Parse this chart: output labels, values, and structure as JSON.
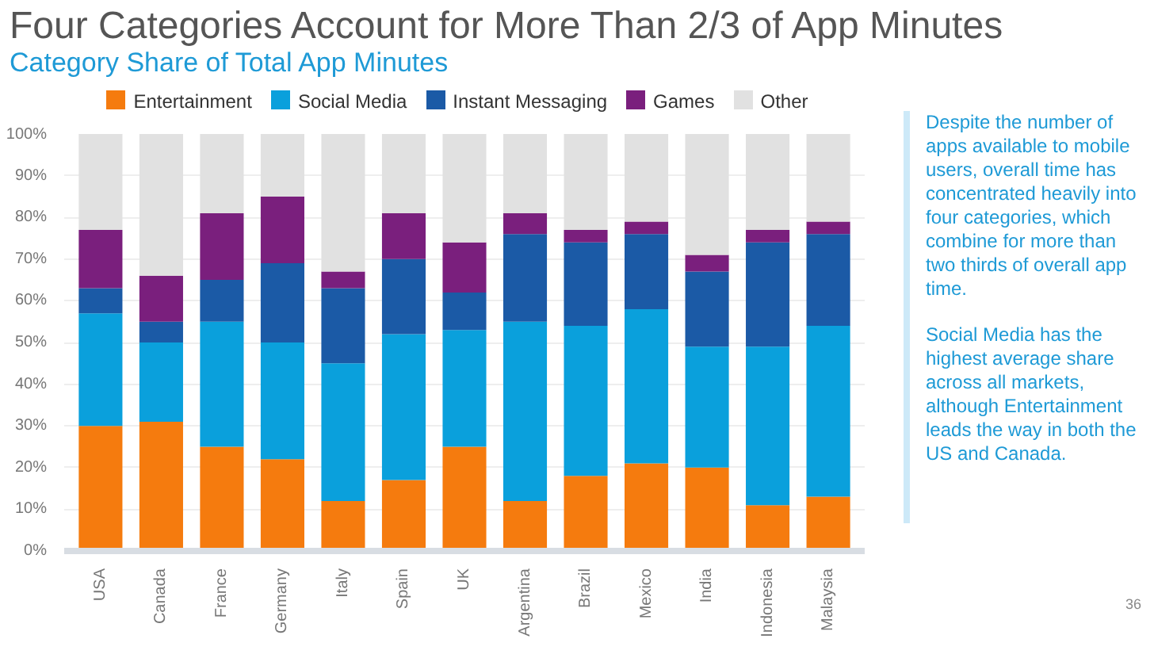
{
  "chart_data": {
    "type": "bar",
    "stacked": true,
    "title": "Four Categories Account for More Than 2/3 of App Minutes",
    "subtitle": "Category Share of Total App Minutes",
    "categories": [
      "USA",
      "Canada",
      "France",
      "Germany",
      "Italy",
      "Spain",
      "UK",
      "Argentina",
      "Brazil",
      "Mexico",
      "India",
      "Indonesia",
      "Malaysia"
    ],
    "series": [
      {
        "name": "Entertainment",
        "color": "#f57b0e",
        "values": [
          30,
          31,
          25,
          22,
          12,
          17,
          25,
          12,
          18,
          21,
          20,
          11,
          13
        ]
      },
      {
        "name": "Social Media",
        "color": "#0aa0dc",
        "values": [
          27,
          19,
          30,
          28,
          33,
          35,
          28,
          43,
          36,
          37,
          29,
          38,
          41
        ]
      },
      {
        "name": "Instant Messaging",
        "color": "#1b5aa6",
        "values": [
          6,
          5,
          10,
          19,
          18,
          18,
          9,
          21,
          20,
          18,
          18,
          25,
          22
        ]
      },
      {
        "name": "Games",
        "color": "#7a1f7d",
        "values": [
          14,
          11,
          16,
          16,
          4,
          11,
          12,
          5,
          3,
          3,
          4,
          3,
          3
        ]
      },
      {
        "name": "Other",
        "color": "#e1e1e1",
        "values": [
          23,
          34,
          19,
          15,
          33,
          19,
          26,
          19,
          23,
          21,
          29,
          23,
          21
        ]
      }
    ],
    "ylim": [
      0,
      100
    ],
    "yticks": [
      {
        "value": 0,
        "label": "0%"
      },
      {
        "value": 10,
        "label": "10%"
      },
      {
        "value": 20,
        "label": "20%"
      },
      {
        "value": 30,
        "label": "30%"
      },
      {
        "value": 40,
        "label": "40%"
      },
      {
        "value": 50,
        "label": "50%"
      },
      {
        "value": 60,
        "label": "60%"
      },
      {
        "value": 70,
        "label": "70%"
      },
      {
        "value": 80,
        "label": "80%"
      },
      {
        "value": 90,
        "label": "90%"
      },
      {
        "value": 100,
        "label": "100%"
      }
    ],
    "grid": "y",
    "legend": "top",
    "annotations": [
      "Despite the number of apps available to mobile users, overall time has concentrated heavily into four categories, which combine for more than two thirds of overall app time.",
      "Social Media has the highest average share across all markets, although Entertainment leads the way in both the US and Canada.",
      "36"
    ]
  }
}
